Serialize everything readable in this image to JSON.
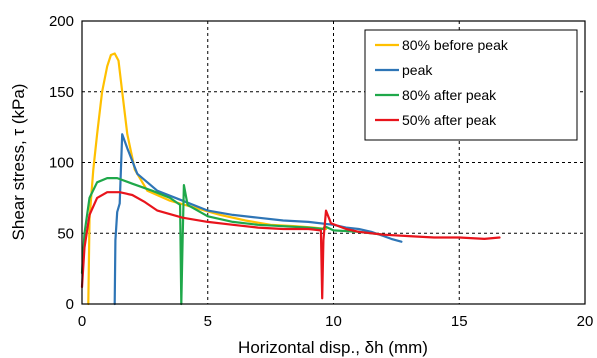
{
  "chart_data": {
    "type": "line",
    "xlabel": "Horizontal disp., δh (mm)",
    "ylabel": "Shear stress, τ (kPa)",
    "xlim": [
      0,
      20
    ],
    "ylim": [
      0,
      200
    ],
    "xticks": [
      "0",
      "5",
      "10",
      "15",
      "20"
    ],
    "yticks": [
      "0",
      "50",
      "100",
      "150",
      "200"
    ],
    "grid": "dashed",
    "legend_position": "top-right",
    "series": [
      {
        "name": "80% before peak",
        "color": "#FFC000",
        "points": [
          [
            0.25,
            0
          ],
          [
            0.3,
            60
          ],
          [
            0.45,
            95
          ],
          [
            0.6,
            120
          ],
          [
            0.8,
            150
          ],
          [
            1.0,
            168
          ],
          [
            1.15,
            176
          ],
          [
            1.3,
            177
          ],
          [
            1.45,
            172
          ],
          [
            1.6,
            150
          ],
          [
            1.8,
            120
          ],
          [
            2.1,
            95
          ],
          [
            2.6,
            80
          ],
          [
            3.5,
            73
          ],
          [
            4.5,
            68
          ],
          [
            5.5,
            63
          ],
          [
            6.5,
            59
          ],
          [
            7.5,
            56
          ],
          [
            8.5,
            55
          ],
          [
            9.2,
            54
          ],
          [
            9.7,
            53
          ]
        ]
      },
      {
        "name": "peak",
        "color": "#2E75B6",
        "points": [
          [
            1.3,
            0
          ],
          [
            1.33,
            45
          ],
          [
            1.4,
            65
          ],
          [
            1.5,
            71
          ],
          [
            1.6,
            120
          ],
          [
            1.8,
            110
          ],
          [
            2.2,
            92
          ],
          [
            3.0,
            80
          ],
          [
            4.0,
            73
          ],
          [
            5.0,
            66
          ],
          [
            6.0,
            63
          ],
          [
            7.0,
            61
          ],
          [
            8.0,
            59
          ],
          [
            9.0,
            58
          ],
          [
            10.0,
            56
          ],
          [
            10.5,
            54
          ],
          [
            11.0,
            53
          ],
          [
            11.5,
            51
          ],
          [
            12.0,
            48
          ],
          [
            12.3,
            46
          ],
          [
            12.7,
            44
          ]
        ]
      },
      {
        "name": "80% after peak",
        "color": "#1FA84A",
        "points": [
          [
            0,
            22
          ],
          [
            0.1,
            50
          ],
          [
            0.3,
            75
          ],
          [
            0.6,
            86
          ],
          [
            1.0,
            89
          ],
          [
            1.4,
            89
          ],
          [
            2.0,
            85
          ],
          [
            2.8,
            80
          ],
          [
            3.5,
            75
          ],
          [
            3.9,
            70
          ],
          [
            3.95,
            0
          ],
          [
            4.0,
            45
          ],
          [
            4.05,
            84
          ],
          [
            4.2,
            70
          ],
          [
            5.0,
            62
          ],
          [
            6.0,
            58
          ],
          [
            7.0,
            56
          ],
          [
            8.0,
            55
          ],
          [
            9.0,
            54
          ],
          [
            9.6,
            53
          ],
          [
            9.65,
            55
          ],
          [
            10.0,
            52
          ],
          [
            11.0,
            51
          ],
          [
            11.5,
            50
          ],
          [
            12.0,
            49
          ]
        ]
      },
      {
        "name": "50% after peak",
        "color": "#E8141C",
        "points": [
          [
            0,
            12
          ],
          [
            0.1,
            40
          ],
          [
            0.3,
            63
          ],
          [
            0.6,
            75
          ],
          [
            1.0,
            79
          ],
          [
            1.5,
            79
          ],
          [
            2.0,
            77
          ],
          [
            2.5,
            72
          ],
          [
            3.0,
            66
          ],
          [
            4.0,
            61
          ],
          [
            5.0,
            58
          ],
          [
            6.0,
            56
          ],
          [
            7.0,
            54
          ],
          [
            8.0,
            53
          ],
          [
            9.0,
            53
          ],
          [
            9.5,
            52
          ],
          [
            9.55,
            4
          ],
          [
            9.6,
            45
          ],
          [
            9.7,
            66
          ],
          [
            9.9,
            57
          ],
          [
            10.5,
            53
          ],
          [
            11.0,
            51
          ],
          [
            12.0,
            49
          ],
          [
            13.0,
            48
          ],
          [
            14.0,
            47
          ],
          [
            15.0,
            47
          ],
          [
            16.0,
            46
          ],
          [
            16.6,
            47
          ]
        ]
      }
    ]
  }
}
